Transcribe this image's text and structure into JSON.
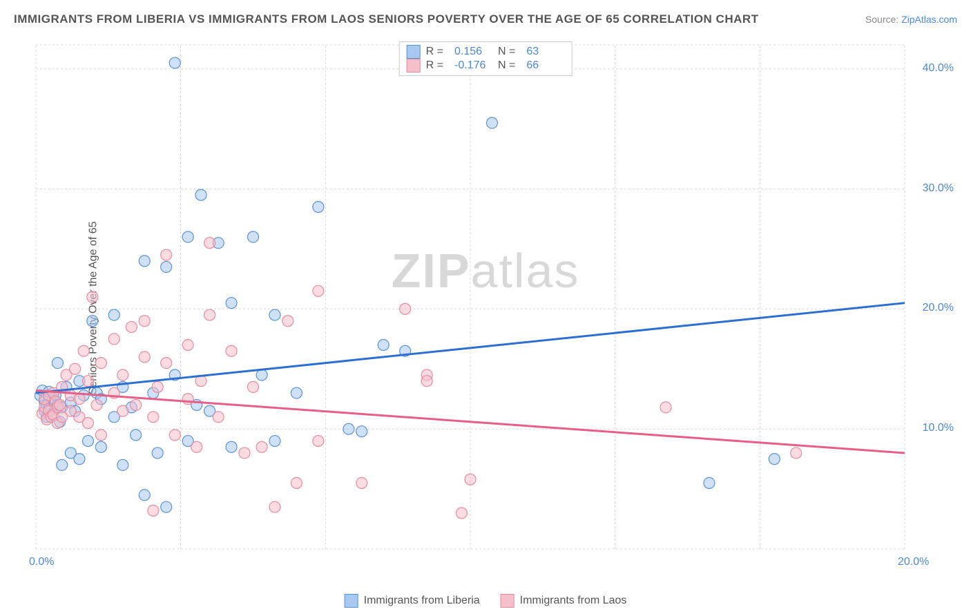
{
  "title": "IMMIGRANTS FROM LIBERIA VS IMMIGRANTS FROM LAOS SENIORS POVERTY OVER THE AGE OF 65 CORRELATION CHART",
  "source_prefix": "Source: ",
  "source_name": "ZipAtlas.com",
  "yaxis_label": "Seniors Poverty Over the Age of 65",
  "watermark_bold": "ZIP",
  "watermark_light": "atlas",
  "chart": {
    "type": "scatter",
    "xlim": [
      0,
      20
    ],
    "ylim": [
      0,
      42
    ],
    "x_ticks": [
      {
        "v": 0,
        "label": "0.0%"
      },
      {
        "v": 20,
        "label": "20.0%"
      }
    ],
    "y_ticks": [
      {
        "v": 10,
        "label": "10.0%"
      },
      {
        "v": 20,
        "label": "20.0%"
      },
      {
        "v": 30,
        "label": "30.0%"
      },
      {
        "v": 40,
        "label": "40.0%"
      }
    ],
    "x_gridlines": [
      0,
      3.33,
      6.67,
      10,
      13.33,
      16.67,
      20
    ],
    "y_gridlines": [
      0,
      10,
      20,
      30,
      40,
      42
    ],
    "grid_color": "#d8d8d8",
    "background_color": "#ffffff",
    "marker_radius": 8,
    "marker_opacity": 0.55,
    "series": [
      {
        "name": "Immigrants from Liberia",
        "fill": "#a8c9ef",
        "stroke": "#5b93d6",
        "line_color": "#2d6fd0",
        "R": 0.156,
        "N": 63,
        "trend": {
          "x1": 0,
          "y1": 13.0,
          "x2": 20,
          "y2": 20.5
        },
        "points": [
          [
            0.1,
            12.8
          ],
          [
            0.15,
            13.2
          ],
          [
            0.2,
            11.5
          ],
          [
            0.2,
            12.3
          ],
          [
            0.25,
            11.0
          ],
          [
            0.25,
            12.0
          ],
          [
            0.3,
            13.1
          ],
          [
            0.3,
            11.7
          ],
          [
            0.4,
            12.5
          ],
          [
            0.4,
            11.1
          ],
          [
            0.45,
            12.8
          ],
          [
            0.5,
            15.5
          ],
          [
            0.5,
            12.0
          ],
          [
            0.55,
            10.6
          ],
          [
            0.6,
            7.0
          ],
          [
            0.6,
            11.8
          ],
          [
            0.7,
            13.5
          ],
          [
            0.8,
            12.2
          ],
          [
            0.8,
            8.0
          ],
          [
            0.9,
            11.5
          ],
          [
            1.0,
            14.0
          ],
          [
            1.0,
            7.5
          ],
          [
            1.1,
            12.8
          ],
          [
            1.2,
            9.0
          ],
          [
            1.3,
            19.0
          ],
          [
            1.4,
            13.0
          ],
          [
            1.5,
            8.5
          ],
          [
            1.5,
            12.5
          ],
          [
            1.8,
            11.0
          ],
          [
            1.8,
            19.5
          ],
          [
            2.0,
            13.5
          ],
          [
            2.0,
            7.0
          ],
          [
            2.2,
            11.8
          ],
          [
            2.3,
            9.5
          ],
          [
            2.5,
            24.0
          ],
          [
            2.5,
            4.5
          ],
          [
            2.7,
            13.0
          ],
          [
            2.8,
            8.0
          ],
          [
            3.0,
            23.5
          ],
          [
            3.0,
            3.5
          ],
          [
            3.2,
            14.5
          ],
          [
            3.2,
            40.5
          ],
          [
            3.5,
            26.0
          ],
          [
            3.5,
            9.0
          ],
          [
            3.7,
            12.0
          ],
          [
            3.8,
            29.5
          ],
          [
            4.0,
            11.5
          ],
          [
            4.2,
            25.5
          ],
          [
            4.5,
            8.5
          ],
          [
            4.5,
            20.5
          ],
          [
            5.0,
            26.0
          ],
          [
            5.2,
            14.5
          ],
          [
            5.5,
            19.5
          ],
          [
            5.5,
            9.0
          ],
          [
            6.0,
            13.0
          ],
          [
            6.5,
            28.5
          ],
          [
            7.2,
            10.0
          ],
          [
            7.5,
            9.8
          ],
          [
            8.0,
            17.0
          ],
          [
            8.5,
            16.5
          ],
          [
            10.5,
            35.5
          ],
          [
            15.5,
            5.5
          ],
          [
            17.0,
            7.5
          ]
        ]
      },
      {
        "name": "Immigrants from Laos",
        "fill": "#f5c0ca",
        "stroke": "#e68b9e",
        "line_color": "#e75f87",
        "R": -0.176,
        "N": 66,
        "trend": {
          "x1": 0,
          "y1": 13.2,
          "x2": 20,
          "y2": 8.0
        },
        "points": [
          [
            0.15,
            11.3
          ],
          [
            0.2,
            11.8
          ],
          [
            0.2,
            12.5
          ],
          [
            0.25,
            10.8
          ],
          [
            0.3,
            11.5
          ],
          [
            0.3,
            12.8
          ],
          [
            0.35,
            11.0
          ],
          [
            0.4,
            13.0
          ],
          [
            0.4,
            11.2
          ],
          [
            0.45,
            12.3
          ],
          [
            0.5,
            11.8
          ],
          [
            0.5,
            10.5
          ],
          [
            0.55,
            12.0
          ],
          [
            0.6,
            13.5
          ],
          [
            0.6,
            11.0
          ],
          [
            0.7,
            14.5
          ],
          [
            0.8,
            11.5
          ],
          [
            0.8,
            12.8
          ],
          [
            0.9,
            15.0
          ],
          [
            1.0,
            11.0
          ],
          [
            1.0,
            12.5
          ],
          [
            1.1,
            16.5
          ],
          [
            1.2,
            10.5
          ],
          [
            1.2,
            14.0
          ],
          [
            1.3,
            21.0
          ],
          [
            1.4,
            12.0
          ],
          [
            1.5,
            15.5
          ],
          [
            1.5,
            9.5
          ],
          [
            1.8,
            13.0
          ],
          [
            1.8,
            17.5
          ],
          [
            2.0,
            11.5
          ],
          [
            2.0,
            14.5
          ],
          [
            2.2,
            18.5
          ],
          [
            2.3,
            12.0
          ],
          [
            2.5,
            16.0
          ],
          [
            2.5,
            19.0
          ],
          [
            2.7,
            11.0
          ],
          [
            2.7,
            3.2
          ],
          [
            2.8,
            13.5
          ],
          [
            3.0,
            15.5
          ],
          [
            3.0,
            24.5
          ],
          [
            3.2,
            9.5
          ],
          [
            3.5,
            12.5
          ],
          [
            3.5,
            17.0
          ],
          [
            3.7,
            8.5
          ],
          [
            3.8,
            14.0
          ],
          [
            4.0,
            25.5
          ],
          [
            4.0,
            19.5
          ],
          [
            4.2,
            11.0
          ],
          [
            4.5,
            16.5
          ],
          [
            4.8,
            8.0
          ],
          [
            5.0,
            13.5
          ],
          [
            5.2,
            8.5
          ],
          [
            5.5,
            3.5
          ],
          [
            5.8,
            19.0
          ],
          [
            6.0,
            5.5
          ],
          [
            6.5,
            9.0
          ],
          [
            6.5,
            21.5
          ],
          [
            7.5,
            5.5
          ],
          [
            8.5,
            20.0
          ],
          [
            9.0,
            14.5
          ],
          [
            9.0,
            14.0
          ],
          [
            9.8,
            3.0
          ],
          [
            10.0,
            5.8
          ],
          [
            14.5,
            11.8
          ],
          [
            17.5,
            8.0
          ]
        ]
      }
    ]
  },
  "legend_top": {
    "r_label": "R =",
    "n_label": "N ="
  },
  "legend_bottom": [
    {
      "label": "Immigrants from Liberia",
      "fill": "#a8c9ef",
      "stroke": "#5b93d6"
    },
    {
      "label": "Immigrants from Laos",
      "fill": "#f5c0ca",
      "stroke": "#e68b9e"
    }
  ]
}
